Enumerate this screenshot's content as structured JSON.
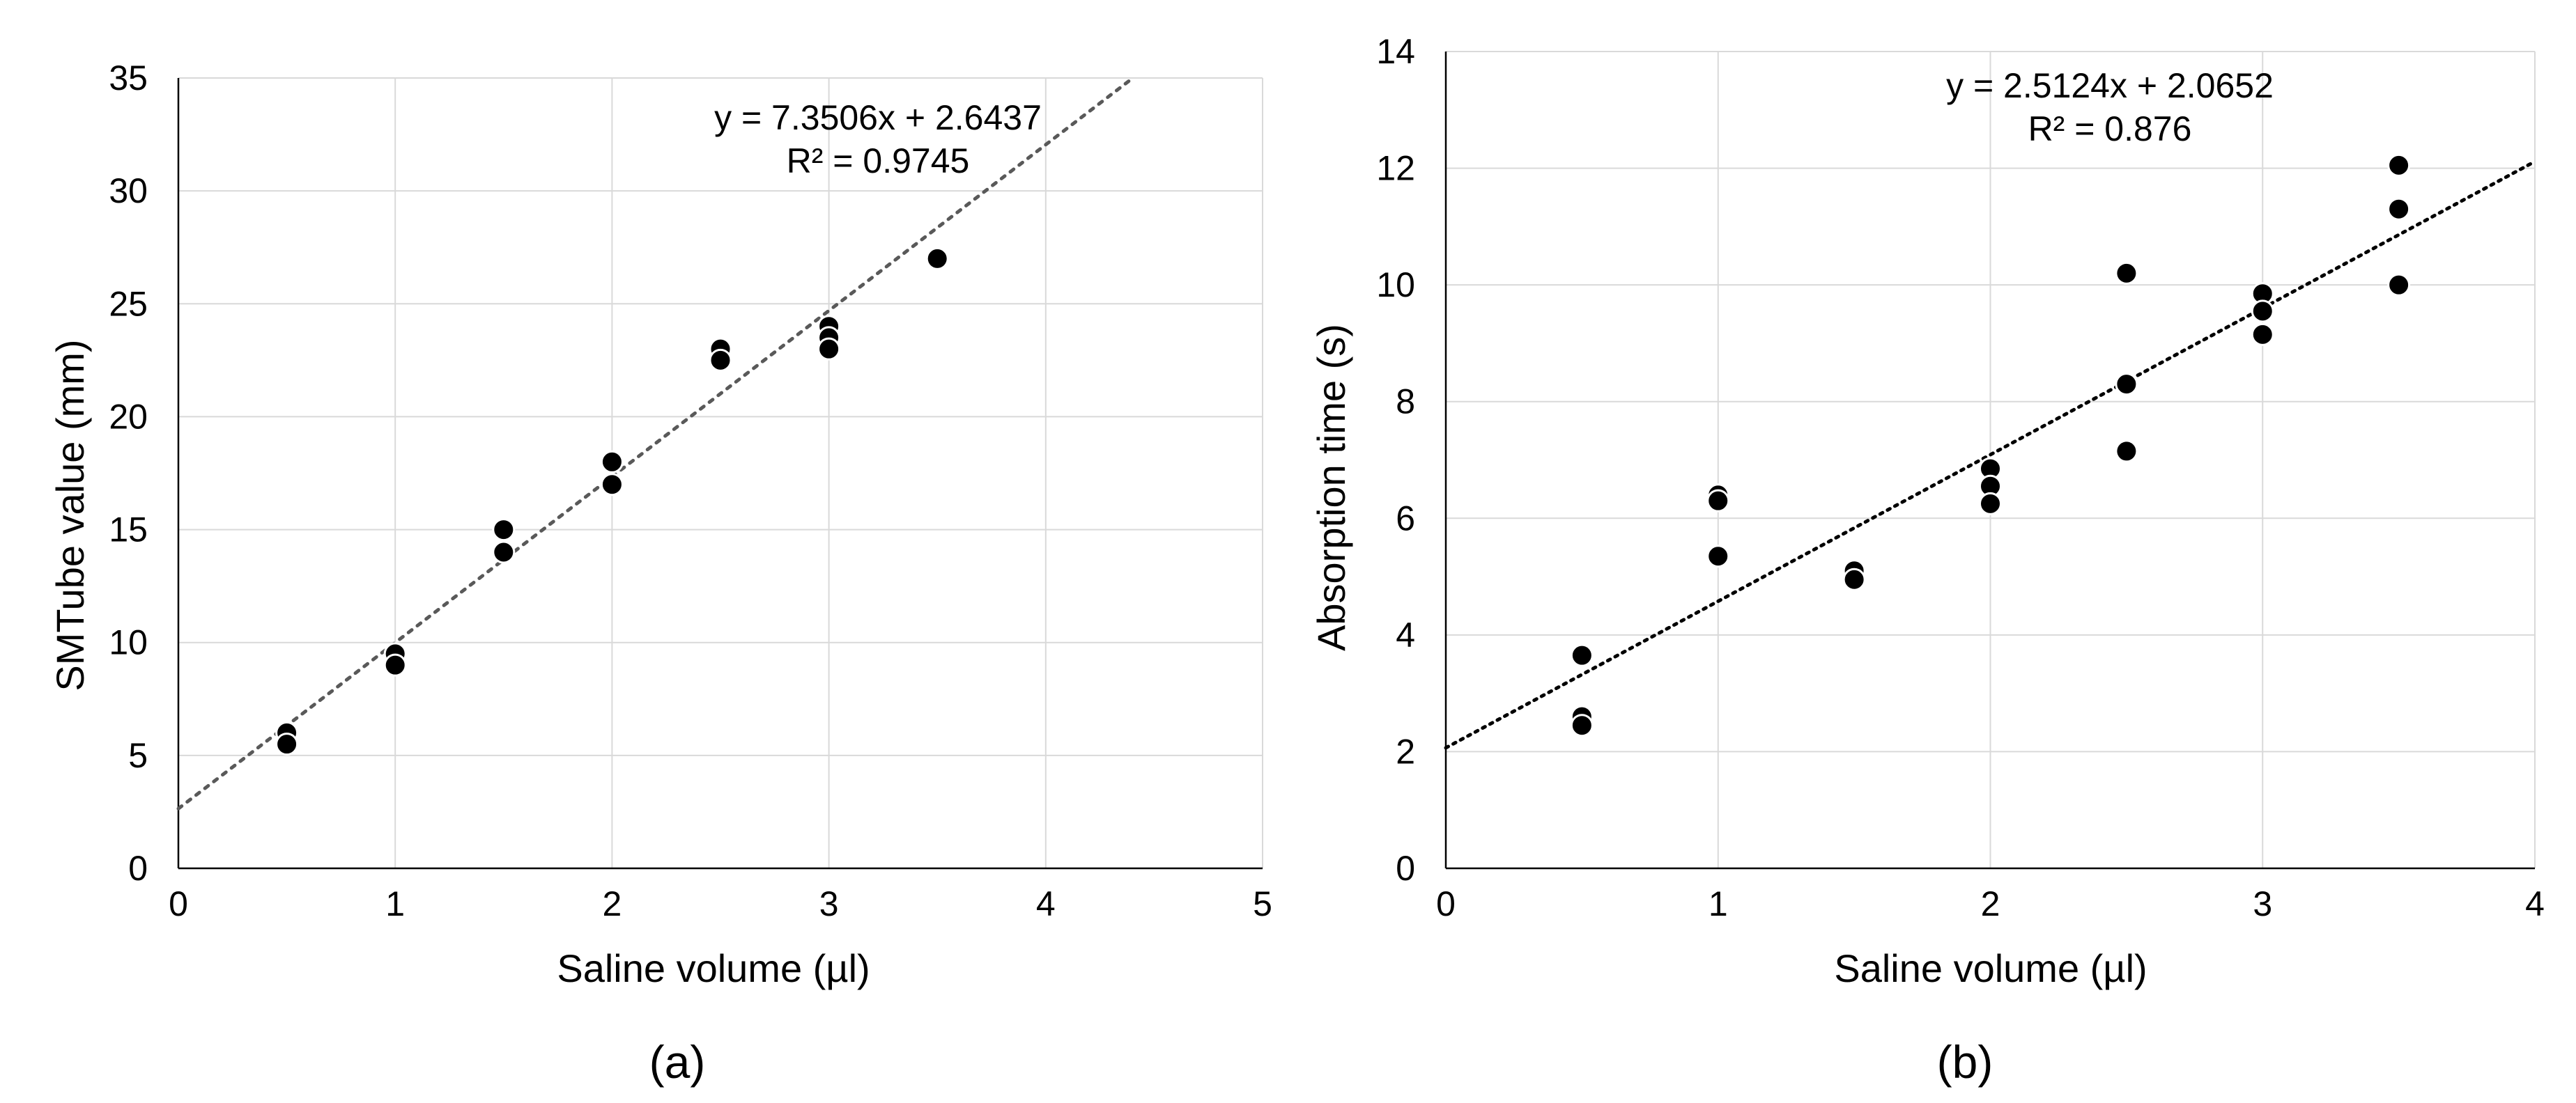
{
  "chart_data": [
    {
      "type": "scatter",
      "panel_label": "(a)",
      "xlabel": "Saline volume (µl)",
      "ylabel": "SMTube value (mm)",
      "xlim": [
        0,
        5
      ],
      "ylim": [
        0,
        35
      ],
      "xticks": [
        0,
        1,
        2,
        3,
        4,
        5
      ],
      "yticks": [
        0,
        5,
        10,
        15,
        20,
        25,
        30,
        35
      ],
      "grid": true,
      "points": [
        {
          "x": 0.5,
          "y": 6
        },
        {
          "x": 0.5,
          "y": 5.5
        },
        {
          "x": 1,
          "y": 9.5
        },
        {
          "x": 1,
          "y": 9
        },
        {
          "x": 1.5,
          "y": 15
        },
        {
          "x": 1.5,
          "y": 14
        },
        {
          "x": 2,
          "y": 18
        },
        {
          "x": 2,
          "y": 17
        },
        {
          "x": 2.5,
          "y": 23
        },
        {
          "x": 2.5,
          "y": 22.5
        },
        {
          "x": 3,
          "y": 24
        },
        {
          "x": 3,
          "y": 23.5
        },
        {
          "x": 3,
          "y": 23
        },
        {
          "x": 3.5,
          "y": 27
        }
      ],
      "trendline": {
        "slope": 7.3506,
        "intercept": 2.6437,
        "color": "#595959"
      },
      "equation": "y = 7.3506x + 2.6437",
      "r_squared": "R² = 0.9745"
    },
    {
      "type": "scatter",
      "panel_label": "(b)",
      "xlabel": "Saline volume (µl)",
      "ylabel": "Absorption time (s)",
      "xlim": [
        0,
        4
      ],
      "ylim": [
        0,
        14
      ],
      "xticks": [
        0,
        1,
        2,
        3,
        4
      ],
      "yticks": [
        0,
        2,
        4,
        6,
        8,
        10,
        12,
        14
      ],
      "grid": true,
      "points": [
        {
          "x": 0.5,
          "y": 3.65
        },
        {
          "x": 0.5,
          "y": 2.6
        },
        {
          "x": 0.5,
          "y": 2.45
        },
        {
          "x": 1,
          "y": 6.4
        },
        {
          "x": 1,
          "y": 6.3
        },
        {
          "x": 1,
          "y": 5.35
        },
        {
          "x": 1.5,
          "y": 5.1
        },
        {
          "x": 1.5,
          "y": 4.95
        },
        {
          "x": 2,
          "y": 6.85
        },
        {
          "x": 2,
          "y": 6.55
        },
        {
          "x": 2,
          "y": 6.25
        },
        {
          "x": 2.5,
          "y": 10.2
        },
        {
          "x": 2.5,
          "y": 8.3
        },
        {
          "x": 2.5,
          "y": 7.15
        },
        {
          "x": 3,
          "y": 9.85
        },
        {
          "x": 3,
          "y": 9.55
        },
        {
          "x": 3,
          "y": 9.15
        },
        {
          "x": 3.5,
          "y": 12.05
        },
        {
          "x": 3.5,
          "y": 11.3
        },
        {
          "x": 3.5,
          "y": 10
        }
      ],
      "trendline": {
        "slope": 2.5124,
        "intercept": 2.0652,
        "color": "#000000"
      },
      "equation": "y = 2.5124x + 2.0652",
      "r_squared": "R² = 0.876"
    }
  ]
}
